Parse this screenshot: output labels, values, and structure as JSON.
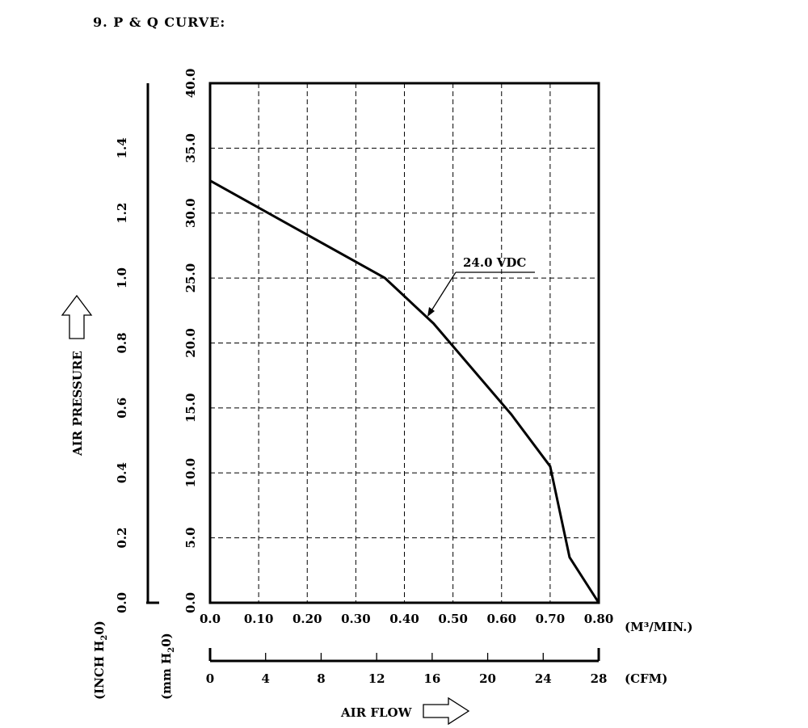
{
  "heading": "9. P & Q CURVE:",
  "chart_data": {
    "type": "line",
    "title": "",
    "x": [
      0.0,
      0.36,
      0.46,
      0.62,
      0.7,
      0.74,
      0.8
    ],
    "series": [
      {
        "name": "24.0 VDC",
        "values": [
          32.5,
          25.0,
          21.5,
          14.5,
          10.5,
          3.5,
          0.0
        ]
      }
    ],
    "xlim": [
      0.0,
      0.8
    ],
    "ylim": [
      0.0,
      40.0
    ],
    "x_ticks": [
      "0.0",
      "0.10",
      "0.20",
      "0.30",
      "0.40",
      "0.50",
      "0.60",
      "0.70",
      "0.80"
    ],
    "y_ticks": [
      "0.0",
      "5.0",
      "10.0",
      "15.0",
      "20.0",
      "25.0",
      "30.0",
      "35.0",
      "40.0"
    ],
    "x_unit": "(M³/MIN.)",
    "y_unit": {
      "prefix": "(mm H",
      "sub": "2",
      "suffix": "0)"
    },
    "cfm_axis": {
      "ticks": [
        "0",
        "4",
        "8",
        "12",
        "16",
        "20",
        "24",
        "28"
      ],
      "max": 28,
      "unit": "(CFM)"
    },
    "inch_axis": {
      "ticks": [
        "0.0",
        "0.2",
        "0.4",
        "0.6",
        "0.8",
        "1.0",
        "1.2",
        "1.4"
      ],
      "max": 1.6,
      "unit": {
        "prefix": "(INCH H",
        "sub": "2",
        "suffix": "0)"
      }
    },
    "y_label": "AIR PRESSURE",
    "x_label": "AIR FLOW",
    "grid": true,
    "annotation": {
      "text": "24.0 VDC",
      "points_to_x": 0.45
    }
  }
}
